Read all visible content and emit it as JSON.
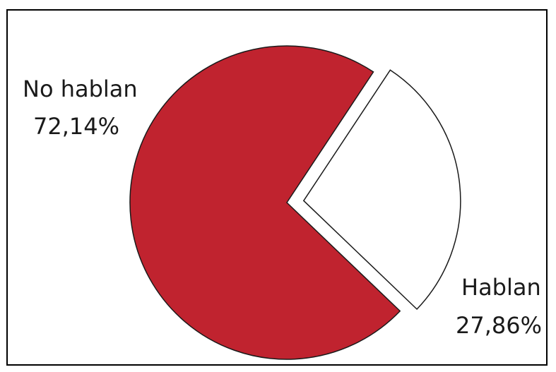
{
  "chart_data": {
    "type": "pie",
    "title": "",
    "slices": [
      {
        "label": "No hablan",
        "value_label": "72,14%",
        "value": 72.14,
        "color": "#c0232f",
        "exploded": false
      },
      {
        "label": "Hablan",
        "value_label": "27,86%",
        "value": 27.86,
        "color": "#ffffff",
        "exploded": true
      }
    ],
    "legend": "none"
  }
}
